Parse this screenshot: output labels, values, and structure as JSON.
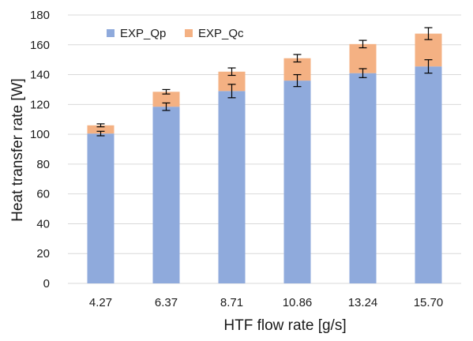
{
  "chart_data": {
    "type": "bar",
    "stacked": true,
    "title": "",
    "xlabel": "HTF flow rate [g/s]",
    "ylabel": "Heat transfer rate [W]",
    "categories": [
      "4.27",
      "6.37",
      "8.71",
      "10.86",
      "13.24",
      "15.70"
    ],
    "ylim": [
      0,
      180
    ],
    "yticks": [
      0,
      20,
      40,
      60,
      80,
      100,
      120,
      140,
      160,
      180
    ],
    "grid": true,
    "legend_position": "top-left",
    "series": [
      {
        "name": "EXP_Qp",
        "color": "#8faadc",
        "values": [
          100.5,
          118.5,
          129.0,
          136.0,
          141.0,
          145.5
        ],
        "error": [
          1.5,
          2.5,
          4.5,
          4.0,
          3.0,
          4.5
        ]
      },
      {
        "name": "EXP_Qc",
        "color": "#f4b183",
        "values": [
          5.5,
          10.0,
          13.0,
          15.0,
          19.5,
          22.0
        ],
        "error": [
          1.0,
          1.5,
          2.5,
          2.5,
          2.5,
          4.0
        ]
      }
    ]
  }
}
